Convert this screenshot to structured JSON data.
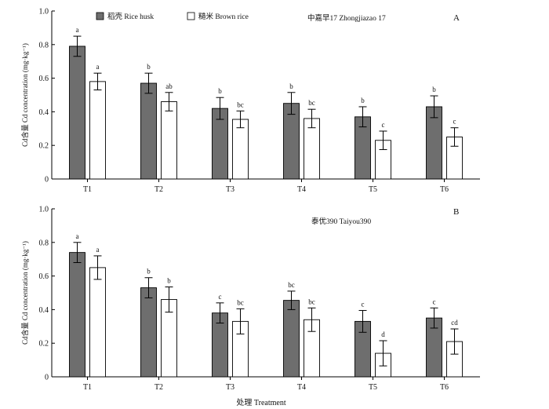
{
  "figure": {
    "xlabel": "处理 Treatment",
    "legend_placement": "top-left",
    "legend": [
      {
        "name": "稻壳 Rice husk",
        "color": "#6e6e6e"
      },
      {
        "name": "糙米 Brown rice",
        "color": "#ffffff"
      }
    ]
  },
  "chart_data": [
    {
      "type": "bar",
      "panel": "A",
      "variety": "中嘉早17 Zhongjiazao 17",
      "categories": [
        "T1",
        "T2",
        "T3",
        "T4",
        "T5",
        "T6"
      ],
      "ylabel": "Cd含量 Cd concentration (mg·kg⁻¹)",
      "ylim": [
        0,
        1.0
      ],
      "yticks": [
        "0",
        "0.2",
        "0.4",
        "0.6",
        "0.8",
        "1.0"
      ],
      "grid": false,
      "series": [
        {
          "name": "稻壳 Rice husk",
          "color": "#6e6e6e",
          "values": [
            0.79,
            0.57,
            0.42,
            0.45,
            0.37,
            0.43
          ],
          "errors": [
            0.06,
            0.06,
            0.065,
            0.065,
            0.06,
            0.065
          ],
          "labels": [
            "a",
            "b",
            "b",
            "b",
            "b",
            "b"
          ]
        },
        {
          "name": "糙米 Brown rice",
          "color": "#ffffff",
          "values": [
            0.58,
            0.46,
            0.355,
            0.36,
            0.23,
            0.25
          ],
          "errors": [
            0.05,
            0.055,
            0.05,
            0.055,
            0.055,
            0.055
          ],
          "labels": [
            "a",
            "ab",
            "bc",
            "bc",
            "c",
            "c"
          ]
        }
      ]
    },
    {
      "type": "bar",
      "panel": "B",
      "variety": "泰优390 Taiyou390",
      "categories": [
        "T1",
        "T2",
        "T3",
        "T4",
        "T5",
        "T6"
      ],
      "ylabel": "Cd含量 Cd concentration (mg·kg⁻¹)",
      "ylim": [
        0,
        1.0
      ],
      "yticks": [
        "0",
        "0.2",
        "0.4",
        "0.6",
        "0.8",
        "1.0"
      ],
      "grid": false,
      "series": [
        {
          "name": "稻壳 Rice husk",
          "color": "#6e6e6e",
          "values": [
            0.74,
            0.53,
            0.38,
            0.455,
            0.33,
            0.35
          ],
          "errors": [
            0.06,
            0.06,
            0.06,
            0.055,
            0.065,
            0.06
          ],
          "labels": [
            "a",
            "b",
            "c",
            "bc",
            "c",
            "c"
          ]
        },
        {
          "name": "糙米 Brown rice",
          "color": "#ffffff",
          "values": [
            0.65,
            0.46,
            0.33,
            0.34,
            0.14,
            0.21
          ],
          "errors": [
            0.07,
            0.075,
            0.075,
            0.07,
            0.075,
            0.075
          ],
          "labels": [
            "a",
            "b",
            "bc",
            "bc",
            "d",
            "cd"
          ]
        }
      ]
    }
  ]
}
